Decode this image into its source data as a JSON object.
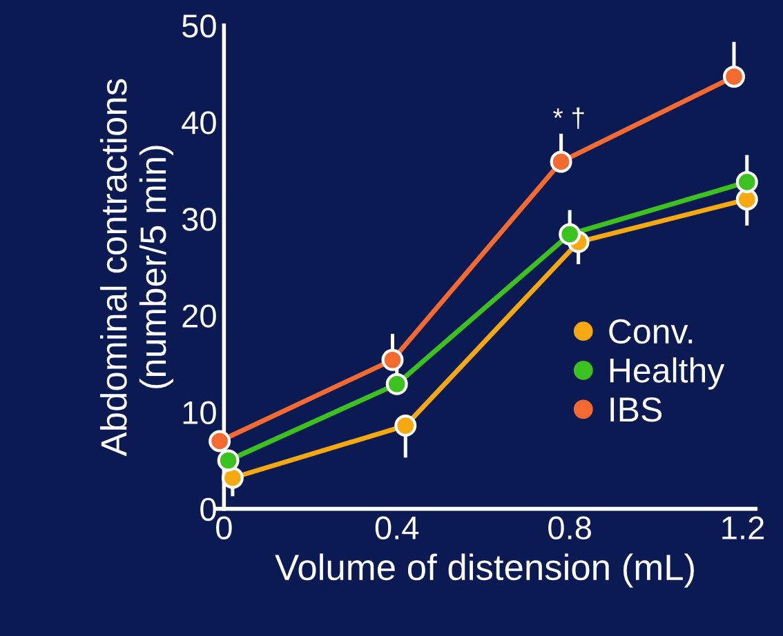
{
  "chart_data": {
    "type": "line",
    "xlabel": "Volume of distension (mL)",
    "ylabel": "Abdominal contractions\n(number/5 min)",
    "xlim": [
      -0.02,
      1.23
    ],
    "ylim": [
      0,
      50
    ],
    "xticks": [
      0,
      0.4,
      0.8,
      {
        "value": 1.2,
        "label": "1.2"
      }
    ],
    "yticks": [
      0,
      10,
      20,
      30,
      40,
      50
    ],
    "series": [
      {
        "name": "Conv.",
        "color": "#f5a810",
        "x": [
          0.02,
          0.42,
          0.82,
          1.21
        ],
        "values": [
          3.2,
          8.6,
          27.6,
          32.0
        ],
        "errors": [
          [
            1.3,
            3.2
          ],
          [
            5.3,
            8.6
          ],
          [
            25.3,
            27.6
          ],
          [
            29.3,
            32.0
          ]
        ]
      },
      {
        "name": "Healthy",
        "color": "#3cc21e",
        "x": [
          0.01,
          0.4,
          0.8,
          1.21
        ],
        "values": [
          5.0,
          12.9,
          28.4,
          33.8
        ],
        "errors": [
          null,
          [
            12.9,
            15.1
          ],
          [
            28.4,
            30.9
          ],
          [
            33.8,
            36.6
          ]
        ]
      },
      {
        "name": "IBS",
        "color": "#f56a30",
        "x": [
          -0.01,
          0.39,
          0.78,
          1.18
        ],
        "values": [
          7.0,
          15.4,
          35.9,
          44.7
        ],
        "errors": [
          null,
          [
            15.4,
            18.1
          ],
          [
            35.9,
            38.8
          ],
          [
            44.7,
            48.3
          ]
        ]
      }
    ],
    "annotations": [
      "* †"
    ],
    "marker": "circle",
    "line_style": "solid",
    "legend": "right",
    "grid": false
  }
}
